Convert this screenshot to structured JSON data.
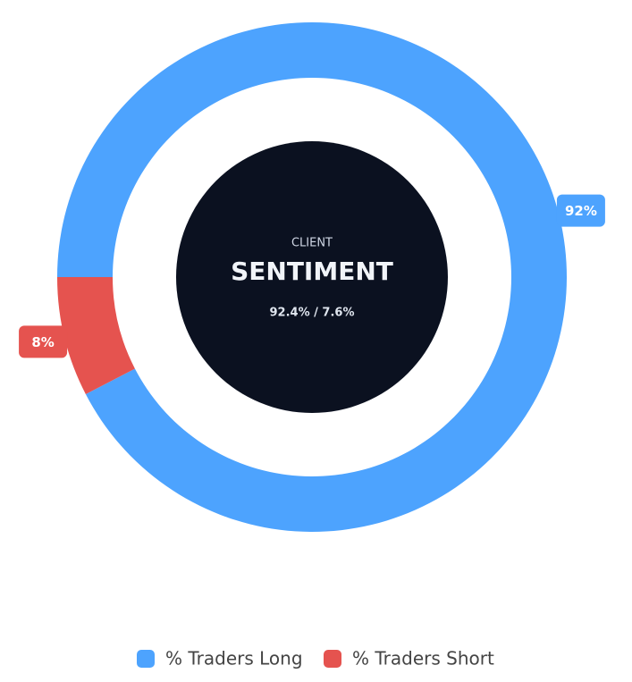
{
  "chart_data": {
    "type": "donut",
    "center_title": "CLIENT",
    "center_heading": "SENTIMENT",
    "center_subtitle": "92.4% / 7.6%",
    "categories": [
      "% Traders Long",
      "% Traders Short"
    ],
    "values": [
      92.4,
      7.6
    ],
    "value_labels": [
      "92%",
      "8%"
    ],
    "colors": [
      "#4da3fe",
      "#e5534f"
    ],
    "legend": "bottom"
  }
}
